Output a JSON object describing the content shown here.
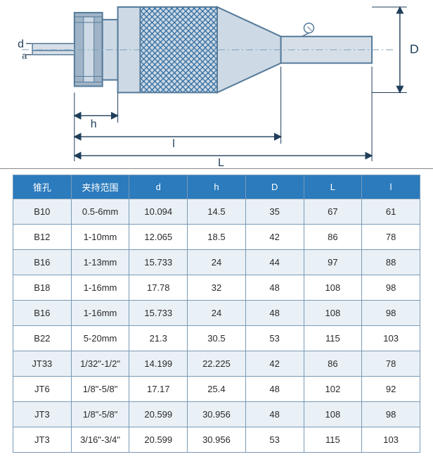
{
  "diagram": {
    "labels": {
      "d": "d",
      "h": "h",
      "l": "l",
      "L": "L",
      "D": "D",
      "a": "a"
    },
    "colors": {
      "outline": "#2c6aa0",
      "body_fill": "#cdd9e4",
      "body_stroke": "#557a9a",
      "shaft_fill": "#d6dfe8",
      "dim_line": "#1f3e5a",
      "text": "#1f3e5a",
      "knurl": "#2c6aa0"
    },
    "fontsize": 16
  },
  "table": {
    "header_bg": "#2b7bbd",
    "header_fg": "#ffffff",
    "row_odd_bg": "#e9f0f6",
    "row_even_bg": "#ffffff",
    "border_color": "#7a9ab5",
    "font_size": 13,
    "columns": [
      "锥孔",
      "夹持范围",
      "d",
      "h",
      "D",
      "L",
      "l"
    ],
    "rows": [
      [
        "B10",
        "0.5-6mm",
        "10.094",
        "14.5",
        "35",
        "67",
        "61"
      ],
      [
        "B12",
        "1-10mm",
        "12.065",
        "18.5",
        "42",
        "86",
        "78"
      ],
      [
        "B16",
        "1-13mm",
        "15.733",
        "24",
        "44",
        "97",
        "88"
      ],
      [
        "B18",
        "1-16mm",
        "17.78",
        "32",
        "48",
        "108",
        "98"
      ],
      [
        "B16",
        "1-16mm",
        "15.733",
        "24",
        "48",
        "108",
        "98"
      ],
      [
        "B22",
        "5-20mm",
        "21.3",
        "30.5",
        "53",
        "115",
        "103"
      ],
      [
        "JT33",
        "1/32\"-1/2\"",
        "14.199",
        "22.225",
        "42",
        "86",
        "78"
      ],
      [
        "JT6",
        "1/8\"-5/8\"",
        "17.17",
        "25.4",
        "48",
        "102",
        "92"
      ],
      [
        "JT3",
        "1/8\"-5/8\"",
        "20.599",
        "30.956",
        "48",
        "108",
        "98"
      ],
      [
        "JT3",
        "3/16\"-3/4\"",
        "20.599",
        "30.956",
        "53",
        "115",
        "103"
      ]
    ]
  }
}
